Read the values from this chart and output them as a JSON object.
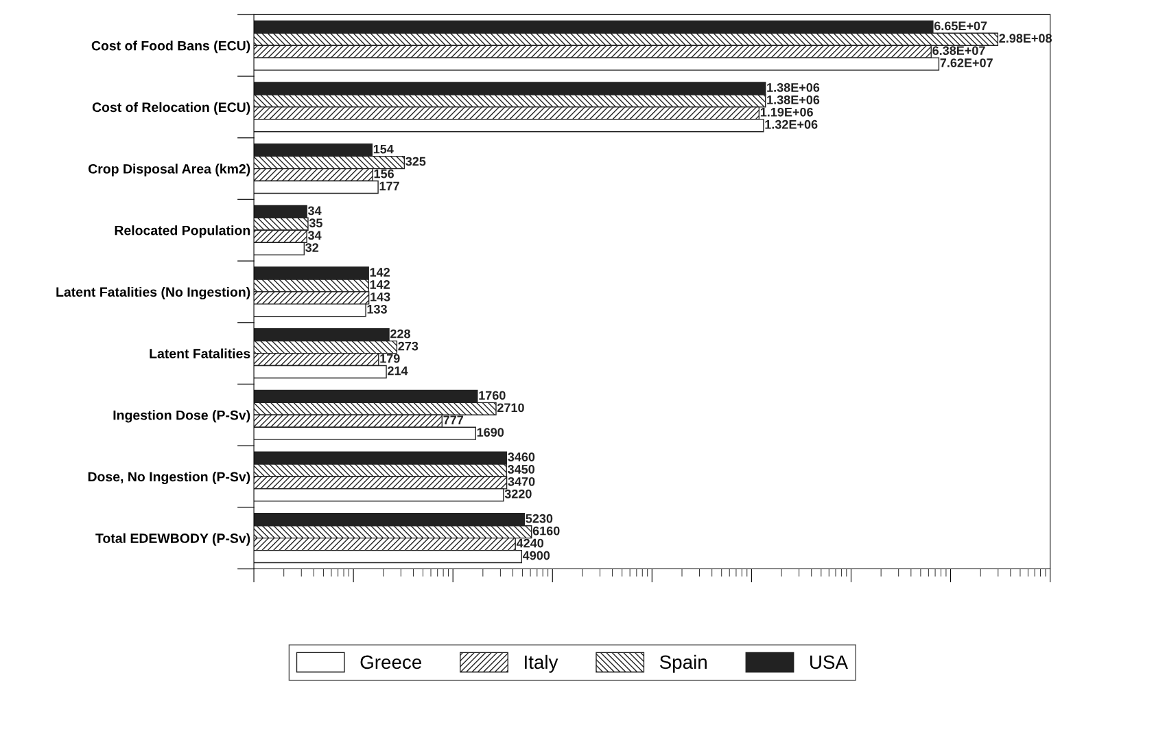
{
  "chart_data": {
    "type": "bar",
    "orientation": "horizontal",
    "log": "x",
    "categories": [
      "Cost of Food Bans (ECU)",
      "Cost of Relocation (ECU)",
      "Crop Disposal Area (km2)",
      "Relocated Population",
      "Latent Fatalities (No Ingestion)",
      "Latent Fatalities",
      "Ingestion Dose (P-Sv)",
      "Dose, No Ingestion (P-Sv)",
      "Total EDEWBODY (P-Sv)"
    ],
    "series": [
      {
        "name": "USA",
        "color": "#222222",
        "values": [
          66500000,
          1380000,
          154,
          34,
          142,
          228,
          1760,
          3460,
          5230
        ],
        "value_labels": [
          "6.65E+07",
          "1.38E+06",
          "154",
          "34",
          "142",
          "228",
          "1760",
          "3460",
          "5230"
        ]
      },
      {
        "name": "Spain",
        "color": "#222222",
        "values": [
          298000000,
          1380000,
          325,
          35,
          142,
          273,
          2710,
          3450,
          6160
        ],
        "value_labels": [
          "2.98E+08",
          "1.38E+06",
          "325",
          "35",
          "142",
          "273",
          "2710",
          "3450",
          "6160"
        ]
      },
      {
        "name": "Italy",
        "color": "#222222",
        "values": [
          63800000,
          1190000,
          156,
          34,
          143,
          179,
          777,
          3470,
          4240
        ],
        "value_labels": [
          "6.38E+07",
          "1.19E+06",
          "156",
          "34",
          "143",
          "179",
          "777",
          "3470",
          "4240"
        ]
      },
      {
        "name": "Greece",
        "color": "#ffffff",
        "values": [
          76200000,
          1320000,
          177,
          32,
          133,
          214,
          1690,
          3220,
          4900
        ],
        "value_labels": [
          "7.62E+07",
          "1.32E+06",
          "177",
          "32",
          "133",
          "214",
          "1690",
          "3220",
          "4900"
        ]
      }
    ],
    "xlim": [
      10,
      1000000000
    ],
    "grid": false,
    "legend": "bottom"
  }
}
